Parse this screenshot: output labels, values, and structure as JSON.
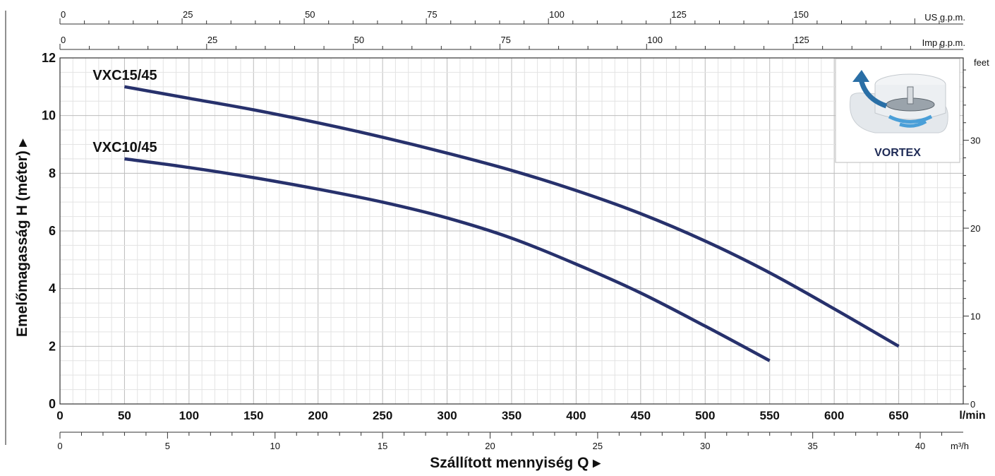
{
  "chart_data": {
    "type": "line",
    "xlabel": "Szállított mennyiség Q",
    "ylabel": "Emelőmagasság H (méter)",
    "x_unit": "l/min",
    "xlim": [
      0,
      700
    ],
    "ylim": [
      0,
      12
    ],
    "x_ticks": [
      0,
      50,
      100,
      150,
      200,
      250,
      300,
      350,
      400,
      450,
      500,
      550,
      600,
      650
    ],
    "y_ticks": [
      0,
      2,
      4,
      6,
      8,
      10,
      12
    ],
    "grid": true,
    "series": [
      {
        "name": "VXC15/45",
        "x": [
          50,
          100,
          150,
          200,
          250,
          300,
          350,
          400,
          450,
          500,
          550,
          600,
          650
        ],
        "y": [
          11.0,
          10.6,
          10.2,
          9.75,
          9.25,
          8.7,
          8.1,
          7.4,
          6.6,
          5.65,
          4.55,
          3.3,
          2.0
        ]
      },
      {
        "name": "VXC10/45",
        "x": [
          50,
          100,
          150,
          200,
          250,
          300,
          350,
          400,
          450,
          500,
          550
        ],
        "y": [
          8.5,
          8.2,
          7.85,
          7.45,
          7.0,
          6.45,
          5.75,
          4.85,
          3.85,
          2.7,
          1.5
        ]
      }
    ],
    "secondary_axes": {
      "right": {
        "unit": "feet",
        "ticks": [
          0,
          10,
          20,
          30
        ],
        "m_per_unit": 0.3048
      },
      "top_us": {
        "unit": "US g.p.m.",
        "ticks": [
          0,
          25,
          50,
          75,
          100,
          125,
          150
        ],
        "lpm_per_unit": 3.7854
      },
      "top_imp": {
        "unit": "Imp g.p.m.",
        "ticks": [
          0,
          25,
          50,
          75,
          100,
          125
        ],
        "lpm_per_unit": 4.5461
      },
      "bottom_m3h": {
        "unit": "m³/h",
        "ticks": [
          0,
          5,
          10,
          15,
          20,
          25,
          30,
          35,
          40
        ],
        "lpm_per_unit": 16.6667
      }
    }
  },
  "inset": {
    "label": "VORTEX"
  }
}
